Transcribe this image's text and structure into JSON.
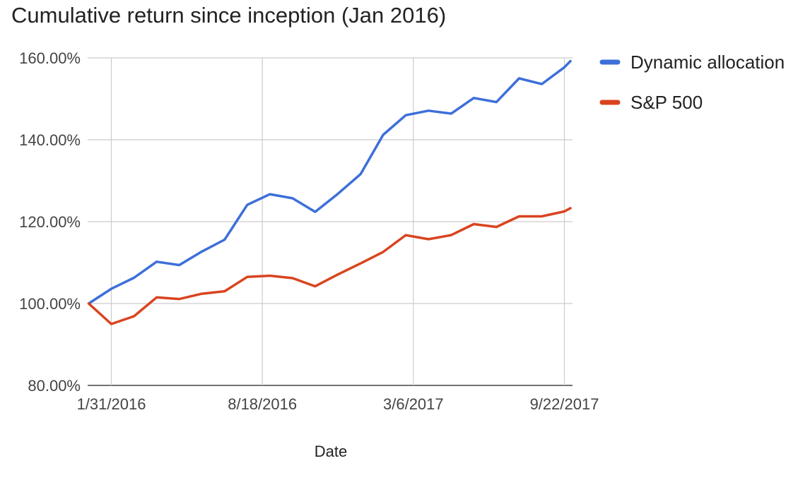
{
  "chart_data": {
    "type": "line",
    "title": "Cumulative return since inception (Jan 2016)",
    "xlabel": "Date",
    "ylabel": "",
    "ylim": [
      80,
      160
    ],
    "y_tick_values": [
      80,
      100,
      120,
      140,
      160
    ],
    "y_tick_labels": [
      "80.00%",
      "100.00%",
      "120.00%",
      "140.00%",
      "160.00%"
    ],
    "x_tick_labels": [
      "1/31/2016",
      "8/18/2016",
      "3/6/2017",
      "9/22/2017"
    ],
    "x": [
      "2016-01-01",
      "2016-01-31",
      "2016-03-01",
      "2016-03-31",
      "2016-04-30",
      "2016-05-30",
      "2016-06-29",
      "2016-07-29",
      "2016-08-28",
      "2016-09-27",
      "2016-10-27",
      "2016-11-26",
      "2016-12-26",
      "2017-01-25",
      "2017-02-24",
      "2017-03-26",
      "2017-04-25",
      "2017-05-25",
      "2017-06-24",
      "2017-07-24",
      "2017-08-23",
      "2017-09-22",
      "2017-09-30"
    ],
    "series": [
      {
        "name": "Dynamic allocation",
        "color": "#3d6fd9",
        "values": [
          100.0,
          103.6,
          106.3,
          110.2,
          109.4,
          112.7,
          115.6,
          124.1,
          126.7,
          125.7,
          122.4,
          126.8,
          131.6,
          141.2,
          146.0,
          147.1,
          146.4,
          150.2,
          149.2,
          155.0,
          153.6,
          157.7,
          159.2
        ]
      },
      {
        "name": "S&P 500",
        "color": "#d9441f",
        "values": [
          100.0,
          95.0,
          96.9,
          101.5,
          101.1,
          102.4,
          103.0,
          106.5,
          106.8,
          106.2,
          104.2,
          107.1,
          109.8,
          112.6,
          116.7,
          115.7,
          116.7,
          119.4,
          118.7,
          121.3,
          121.3,
          122.5,
          123.3
        ]
      }
    ],
    "grid": true,
    "legend_position": "right"
  }
}
